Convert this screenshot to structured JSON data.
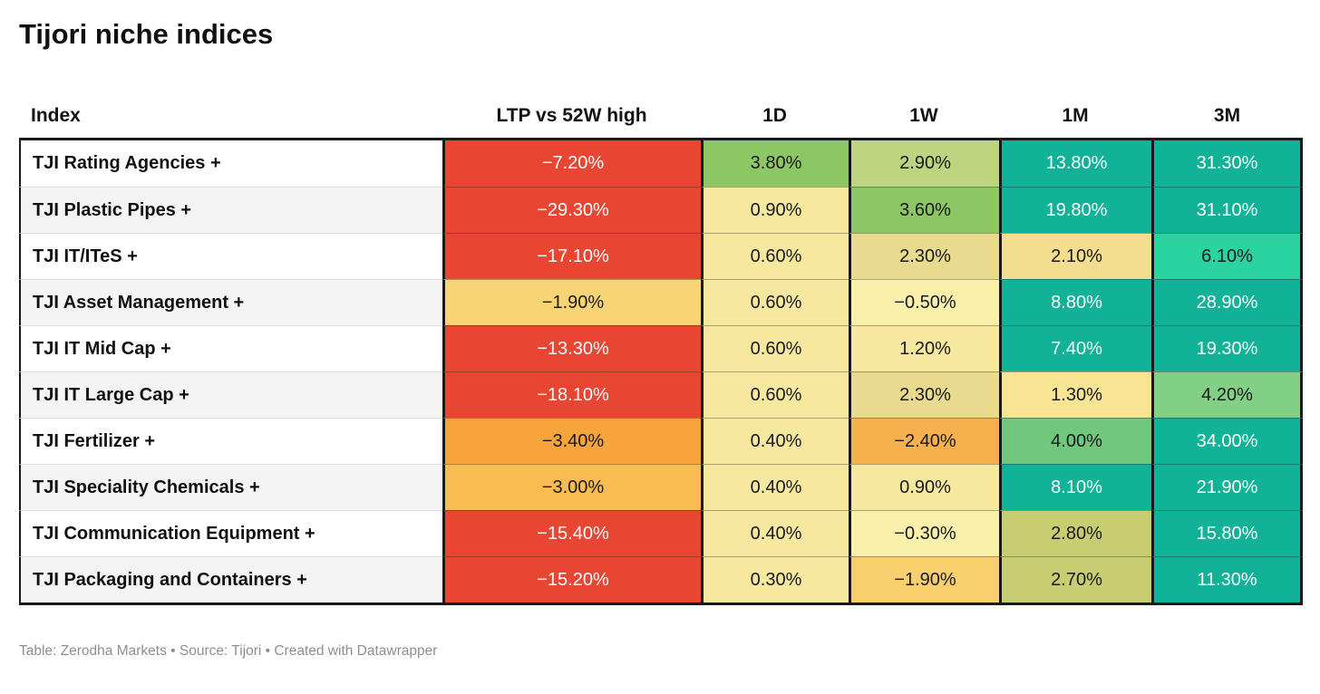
{
  "title": "Tijori niche indices",
  "footer": "Table: Zerodha Markets • Source: Tijori • Created with Datawrapper",
  "colors": {
    "red": "#e84532",
    "teal": "#12b298",
    "mint": "#2ad3a0",
    "green": "#8dc763",
    "border_dark": "#191919",
    "text_dark": "#1a1a1a",
    "text_light": "#ffffff"
  },
  "table": {
    "columns": [
      "Index",
      "LTP vs 52W high",
      "1D",
      "1W",
      "1M",
      "3M"
    ],
    "rows": [
      {
        "label": "TJI Rating Agencies +",
        "cells": [
          {
            "text": "−7.20%",
            "bg": "#e84532",
            "fg": "#ffffff"
          },
          {
            "text": "3.80%",
            "bg": "#8dc763",
            "fg": "#1a1a1a"
          },
          {
            "text": "2.90%",
            "bg": "#bed47e",
            "fg": "#1a1a1a"
          },
          {
            "text": "13.80%",
            "bg": "#12b298",
            "fg": "#ffffff"
          },
          {
            "text": "31.30%",
            "bg": "#12b298",
            "fg": "#ffffff"
          }
        ]
      },
      {
        "label": "TJI Plastic Pipes +",
        "cells": [
          {
            "text": "−29.30%",
            "bg": "#e84532",
            "fg": "#ffffff"
          },
          {
            "text": "0.90%",
            "bg": "#f7e8a0",
            "fg": "#1a1a1a"
          },
          {
            "text": "3.60%",
            "bg": "#8dc763",
            "fg": "#1a1a1a"
          },
          {
            "text": "19.80%",
            "bg": "#12b298",
            "fg": "#ffffff"
          },
          {
            "text": "31.10%",
            "bg": "#12b298",
            "fg": "#ffffff"
          }
        ]
      },
      {
        "label": "TJI IT/ITeS +",
        "cells": [
          {
            "text": "−17.10%",
            "bg": "#e84532",
            "fg": "#ffffff"
          },
          {
            "text": "0.60%",
            "bg": "#f7e8a0",
            "fg": "#1a1a1a"
          },
          {
            "text": "2.30%",
            "bg": "#e9db8d",
            "fg": "#1a1a1a"
          },
          {
            "text": "2.10%",
            "bg": "#f2de8e",
            "fg": "#1a1a1a"
          },
          {
            "text": "6.10%",
            "bg": "#2ad3a0",
            "fg": "#1a1a1a"
          }
        ]
      },
      {
        "label": "TJI Asset Management +",
        "cells": [
          {
            "text": "−1.90%",
            "bg": "#f8d474",
            "fg": "#1a1a1a"
          },
          {
            "text": "0.60%",
            "bg": "#f7e8a0",
            "fg": "#1a1a1a"
          },
          {
            "text": "−0.50%",
            "bg": "#faf0ab",
            "fg": "#1a1a1a"
          },
          {
            "text": "8.80%",
            "bg": "#12b298",
            "fg": "#ffffff"
          },
          {
            "text": "28.90%",
            "bg": "#12b298",
            "fg": "#ffffff"
          }
        ]
      },
      {
        "label": "TJI IT Mid Cap +",
        "cells": [
          {
            "text": "−13.30%",
            "bg": "#e84532",
            "fg": "#ffffff"
          },
          {
            "text": "0.60%",
            "bg": "#f7e8a0",
            "fg": "#1a1a1a"
          },
          {
            "text": "1.20%",
            "bg": "#f7e8a0",
            "fg": "#1a1a1a"
          },
          {
            "text": "7.40%",
            "bg": "#12b298",
            "fg": "#ffffff"
          },
          {
            "text": "19.30%",
            "bg": "#12b298",
            "fg": "#ffffff"
          }
        ]
      },
      {
        "label": "TJI IT Large Cap +",
        "cells": [
          {
            "text": "−18.10%",
            "bg": "#e84532",
            "fg": "#ffffff"
          },
          {
            "text": "0.60%",
            "bg": "#f7e8a0",
            "fg": "#1a1a1a"
          },
          {
            "text": "2.30%",
            "bg": "#e9db8d",
            "fg": "#1a1a1a"
          },
          {
            "text": "1.30%",
            "bg": "#f8e594",
            "fg": "#1a1a1a"
          },
          {
            "text": "4.20%",
            "bg": "#81d085",
            "fg": "#1a1a1a"
          }
        ]
      },
      {
        "label": "TJI Fertilizer +",
        "cells": [
          {
            "text": "−3.40%",
            "bg": "#f6a53c",
            "fg": "#1a1a1a"
          },
          {
            "text": "0.40%",
            "bg": "#f7e8a0",
            "fg": "#1a1a1a"
          },
          {
            "text": "−2.40%",
            "bg": "#f6b04e",
            "fg": "#1a1a1a"
          },
          {
            "text": "4.00%",
            "bg": "#71c77e",
            "fg": "#1a1a1a"
          },
          {
            "text": "34.00%",
            "bg": "#12b298",
            "fg": "#ffffff"
          }
        ]
      },
      {
        "label": "TJI Speciality Chemicals +",
        "cells": [
          {
            "text": "−3.00%",
            "bg": "#f9bc53",
            "fg": "#1a1a1a"
          },
          {
            "text": "0.40%",
            "bg": "#f7e8a0",
            "fg": "#1a1a1a"
          },
          {
            "text": "0.90%",
            "bg": "#f7e8a0",
            "fg": "#1a1a1a"
          },
          {
            "text": "8.10%",
            "bg": "#12b298",
            "fg": "#ffffff"
          },
          {
            "text": "21.90%",
            "bg": "#12b298",
            "fg": "#ffffff"
          }
        ]
      },
      {
        "label": "TJI Communication Equipment +",
        "cells": [
          {
            "text": "−15.40%",
            "bg": "#e84532",
            "fg": "#ffffff"
          },
          {
            "text": "0.40%",
            "bg": "#f7e8a0",
            "fg": "#1a1a1a"
          },
          {
            "text": "−0.30%",
            "bg": "#faf0ab",
            "fg": "#1a1a1a"
          },
          {
            "text": "2.80%",
            "bg": "#c7ce71",
            "fg": "#1a1a1a"
          },
          {
            "text": "15.80%",
            "bg": "#12b298",
            "fg": "#ffffff"
          }
        ]
      },
      {
        "label": "TJI Packaging and Containers +",
        "cells": [
          {
            "text": "−15.20%",
            "bg": "#e84532",
            "fg": "#ffffff"
          },
          {
            "text": "0.30%",
            "bg": "#f7e8a0",
            "fg": "#1a1a1a"
          },
          {
            "text": "−1.90%",
            "bg": "#f9ce6c",
            "fg": "#1a1a1a"
          },
          {
            "text": "2.70%",
            "bg": "#c7ce71",
            "fg": "#1a1a1a"
          },
          {
            "text": "11.30%",
            "bg": "#12b298",
            "fg": "#ffffff"
          }
        ]
      }
    ]
  },
  "chart_data": {
    "type": "table",
    "title": "Tijori niche indices",
    "columns": [
      "Index",
      "LTP vs 52W high",
      "1D",
      "1W",
      "1M",
      "3M"
    ],
    "unit": "percent",
    "rows": [
      [
        "TJI Rating Agencies +",
        -7.2,
        3.8,
        2.9,
        13.8,
        31.3
      ],
      [
        "TJI Plastic Pipes +",
        -29.3,
        0.9,
        3.6,
        19.8,
        31.1
      ],
      [
        "TJI IT/ITeS +",
        -17.1,
        0.6,
        2.3,
        2.1,
        6.1
      ],
      [
        "TJI Asset Management +",
        -1.9,
        0.6,
        -0.5,
        8.8,
        28.9
      ],
      [
        "TJI IT Mid Cap +",
        -13.3,
        0.6,
        1.2,
        7.4,
        19.3
      ],
      [
        "TJI IT Large Cap +",
        -18.1,
        0.6,
        2.3,
        1.3,
        4.2
      ],
      [
        "TJI Fertilizer +",
        -3.4,
        0.4,
        -2.4,
        4.0,
        34.0
      ],
      [
        "TJI Speciality Chemicals +",
        -3.0,
        0.4,
        0.9,
        8.1,
        21.9
      ],
      [
        "TJI Communication Equipment +",
        -15.4,
        0.4,
        -0.3,
        2.8,
        15.8
      ],
      [
        "TJI Packaging and Containers +",
        -15.2,
        0.3,
        -1.9,
        2.7,
        11.3
      ]
    ],
    "legend": "cell color encodes return: red = negative vs 52W high, yellow = near zero, green/teal = positive",
    "footer": "Table: Zerodha Markets • Source: Tijori • Created with Datawrapper"
  }
}
